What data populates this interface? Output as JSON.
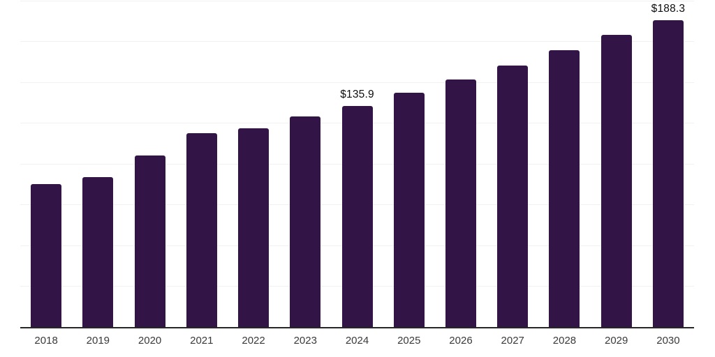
{
  "chart_data": {
    "type": "bar",
    "title": "",
    "xlabel": "",
    "ylabel": "",
    "categories": [
      "2018",
      "2019",
      "2020",
      "2021",
      "2022",
      "2023",
      "2024",
      "2025",
      "2026",
      "2027",
      "2028",
      "2029",
      "2030"
    ],
    "values": [
      87.8,
      92.3,
      105.6,
      119.1,
      122.2,
      129.2,
      135.9,
      143.9,
      152.0,
      160.5,
      169.9,
      179.2,
      188.3
    ],
    "data_labels": [
      "",
      "",
      "",
      "",
      "",
      "",
      "$135.9",
      "",
      "",
      "",
      "",
      "",
      "$188.3"
    ],
    "ylim": [
      0,
      200
    ],
    "gridline_values": [
      25,
      50,
      75,
      100,
      125,
      150,
      175,
      200
    ],
    "grid": true,
    "legend_position": "none",
    "bar_color": "#321447",
    "axis_line_color": "#262626",
    "gridline_color": "#f1f1f1",
    "tick_label_color": "#3a3a3a",
    "data_label_color": "#0d0d0d",
    "background_color": "#ffffff"
  }
}
